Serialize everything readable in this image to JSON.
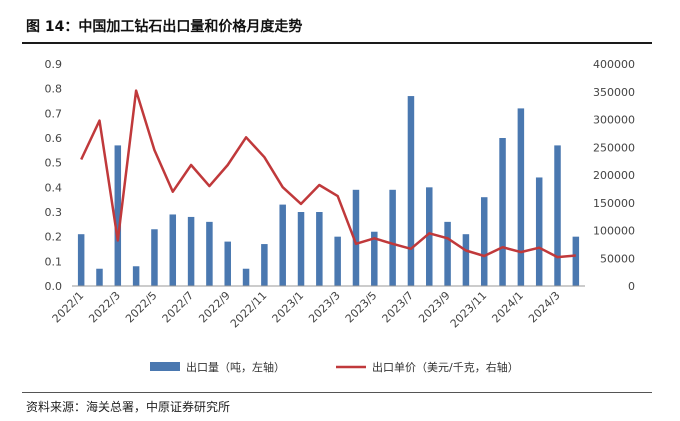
{
  "figure": {
    "title": "图 14：中国加工钻石出口量和价格月度走势",
    "source": "资料来源：海关总署，中原证券研究所"
  },
  "chart_data": {
    "type": "bar",
    "categories": [
      "2022/1",
      "2022/2",
      "2022/3",
      "2022/4",
      "2022/5",
      "2022/6",
      "2022/7",
      "2022/8",
      "2022/9",
      "2022/10",
      "2022/11",
      "2022/12",
      "2023/1",
      "2023/2",
      "2023/3",
      "2023/4",
      "2023/5",
      "2023/6",
      "2023/7",
      "2023/8",
      "2023/9",
      "2023/10",
      "2023/11",
      "2023/12",
      "2024/1",
      "2024/2",
      "2024/3",
      "2024/4"
    ],
    "x_tick_labels": [
      "2022/1",
      "2022/3",
      "2022/5",
      "2022/7",
      "2022/9",
      "2022/11",
      "2023/1",
      "2023/3",
      "2023/5",
      "2023/7",
      "2023/9",
      "2023/11",
      "2024/1",
      "2024/3"
    ],
    "series": [
      {
        "name": "出口量（吨，左轴）",
        "type": "bar",
        "axis": "left",
        "color": "#4a78b0",
        "values": [
          0.21,
          0.07,
          0.57,
          0.08,
          0.23,
          0.29,
          0.28,
          0.26,
          0.18,
          0.07,
          0.17,
          0.33,
          0.3,
          0.3,
          0.2,
          0.39,
          0.22,
          0.39,
          0.77,
          0.4,
          0.26,
          0.21,
          0.36,
          0.6,
          0.72,
          0.44,
          0.57,
          0.2
        ]
      },
      {
        "name": "出口单价（美元/千克，右轴）",
        "type": "line",
        "axis": "right",
        "color": "#c0393b",
        "values": [
          228000,
          298000,
          82000,
          352000,
          245000,
          170000,
          218000,
          180000,
          218000,
          268000,
          232000,
          178000,
          148000,
          182000,
          162000,
          76000,
          86000,
          76000,
          67000,
          95000,
          86000,
          64000,
          54000,
          70000,
          61000,
          69000,
          52000,
          55000
        ]
      }
    ],
    "y_left": {
      "min": 0,
      "max": 0.9,
      "ticks": [
        "0.0",
        "0.1",
        "0.2",
        "0.3",
        "0.4",
        "0.5",
        "0.6",
        "0.7",
        "0.8",
        "0.9"
      ]
    },
    "y_right": {
      "min": 0,
      "max": 400000,
      "ticks": [
        "0",
        "50000",
        "100000",
        "150000",
        "200000",
        "250000",
        "300000",
        "350000",
        "400000"
      ]
    },
    "legend_position": "bottom",
    "grid": false
  }
}
